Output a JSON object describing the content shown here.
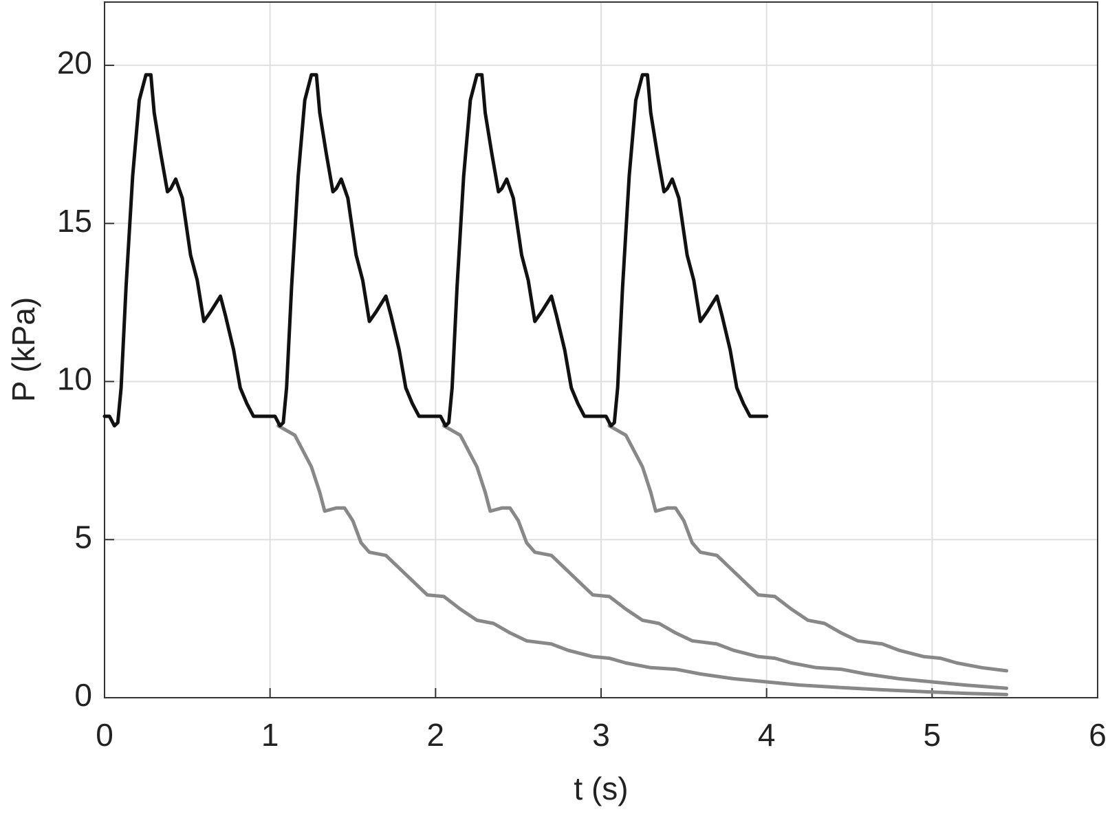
{
  "chart_data": {
    "type": "line",
    "xlabel": "t (s)",
    "ylabel": "P (kPa)",
    "xlim": [
      0,
      6
    ],
    "ylim": [
      0,
      22
    ],
    "xticks": [
      0,
      1,
      2,
      3,
      4,
      5,
      6
    ],
    "yticks": [
      0,
      5,
      10,
      15,
      20
    ],
    "grid": true,
    "series": [
      {
        "color": "#111111",
        "x": [
          0,
          0.03,
          0.06,
          0.08,
          0.1,
          0.13,
          0.17,
          0.21,
          0.25,
          0.28,
          0.3,
          0.34,
          0.38,
          0.4,
          0.43,
          0.47,
          0.52,
          0.56,
          0.6,
          0.64,
          0.7,
          0.73,
          0.78,
          0.82,
          0.86,
          0.9,
          0.96,
          1,
          1.03,
          1.06,
          1.08,
          1.1,
          1.13,
          1.17,
          1.21,
          1.25,
          1.28,
          1.3,
          1.34,
          1.38,
          1.4,
          1.43,
          1.47,
          1.52,
          1.56,
          1.6,
          1.64,
          1.7,
          1.73,
          1.78,
          1.82,
          1.86,
          1.9,
          1.96,
          2,
          2.03,
          2.06,
          2.08,
          2.1,
          2.13,
          2.17,
          2.21,
          2.25,
          2.28,
          2.3,
          2.34,
          2.38,
          2.4,
          2.43,
          2.47,
          2.52,
          2.56,
          2.6,
          2.64,
          2.7,
          2.73,
          2.78,
          2.82,
          2.86,
          2.9,
          2.96,
          3,
          3.03,
          3.06,
          3.08,
          3.1,
          3.13,
          3.17,
          3.21,
          3.25,
          3.28,
          3.3,
          3.34,
          3.38,
          3.4,
          3.43,
          3.47,
          3.52,
          3.56,
          3.6,
          3.64,
          3.7,
          3.73,
          3.78,
          3.82,
          3.86,
          3.9,
          3.96,
          4
        ],
        "values": [
          8.9,
          8.9,
          8.6,
          8.7,
          9.8,
          13,
          16.5,
          18.9,
          19.7,
          19.7,
          18.5,
          17.2,
          16.0,
          16.1,
          16.4,
          15.8,
          14,
          13.2,
          11.9,
          12.2,
          12.7,
          12.1,
          11,
          9.8,
          9.3,
          8.9,
          8.9,
          8.9,
          8.9,
          8.6,
          8.7,
          9.8,
          13,
          16.5,
          18.9,
          19.7,
          19.7,
          18.5,
          17.2,
          16.0,
          16.1,
          16.4,
          15.8,
          14,
          13.2,
          11.9,
          12.2,
          12.7,
          12.1,
          11,
          9.8,
          9.3,
          8.9,
          8.9,
          8.9,
          8.9,
          8.6,
          8.7,
          9.8,
          13,
          16.5,
          18.9,
          19.7,
          19.7,
          18.5,
          17.2,
          16.0,
          16.1,
          16.4,
          15.8,
          14,
          13.2,
          11.9,
          12.2,
          12.7,
          12.1,
          11,
          9.8,
          9.3,
          8.9,
          8.9,
          8.9,
          8.9,
          8.6,
          8.7,
          9.8,
          13,
          16.5,
          18.9,
          19.7,
          19.7,
          18.5,
          17.2,
          16.0,
          16.1,
          16.4,
          15.8,
          14,
          13.2,
          11.9,
          12.2,
          12.7,
          12.1,
          11,
          9.8,
          9.3,
          8.9,
          8.9,
          8.9
        ]
      },
      {
        "color": "#888888",
        "x": [
          1.05,
          1.15,
          1.25,
          1.3,
          1.33,
          1.4,
          1.45,
          1.5,
          1.55,
          1.6,
          1.7,
          1.8,
          1.9,
          1.95,
          2.05,
          2.15,
          2.25,
          2.35,
          2.45,
          2.55,
          2.7,
          2.8,
          2.95,
          3.05,
          3.15,
          3.3,
          3.45,
          3.6,
          3.8,
          4.0,
          4.2,
          4.45,
          4.7,
          5.0,
          5.2,
          5.45
        ],
        "values": [
          8.6,
          8.3,
          7.3,
          6.5,
          5.9,
          6.0,
          6.0,
          5.6,
          4.9,
          4.6,
          4.5,
          4.0,
          3.5,
          3.25,
          3.2,
          2.8,
          2.45,
          2.35,
          2.05,
          1.8,
          1.7,
          1.5,
          1.3,
          1.25,
          1.1,
          0.95,
          0.9,
          0.75,
          0.6,
          0.5,
          0.4,
          0.32,
          0.25,
          0.18,
          0.14,
          0.1
        ]
      },
      {
        "color": "#888888",
        "x": [
          2.05,
          2.15,
          2.25,
          2.3,
          2.33,
          2.4,
          2.45,
          2.5,
          2.55,
          2.6,
          2.7,
          2.8,
          2.9,
          2.95,
          3.05,
          3.15,
          3.25,
          3.35,
          3.45,
          3.55,
          3.7,
          3.8,
          3.95,
          4.05,
          4.15,
          4.3,
          4.45,
          4.6,
          4.8,
          5.0,
          5.2,
          5.45
        ],
        "values": [
          8.6,
          8.3,
          7.3,
          6.5,
          5.9,
          6.0,
          6.0,
          5.6,
          4.9,
          4.6,
          4.5,
          4.0,
          3.5,
          3.25,
          3.2,
          2.8,
          2.45,
          2.35,
          2.05,
          1.8,
          1.7,
          1.5,
          1.3,
          1.25,
          1.1,
          0.95,
          0.9,
          0.75,
          0.6,
          0.5,
          0.4,
          0.3
        ]
      },
      {
        "color": "#888888",
        "x": [
          3.05,
          3.15,
          3.25,
          3.3,
          3.33,
          3.4,
          3.45,
          3.5,
          3.55,
          3.6,
          3.7,
          3.8,
          3.9,
          3.95,
          4.05,
          4.15,
          4.25,
          4.35,
          4.45,
          4.55,
          4.7,
          4.8,
          4.95,
          5.05,
          5.15,
          5.3,
          5.45
        ],
        "values": [
          8.6,
          8.3,
          7.3,
          6.5,
          5.9,
          6.0,
          6.0,
          5.6,
          4.9,
          4.6,
          4.5,
          4.0,
          3.5,
          3.25,
          3.2,
          2.8,
          2.45,
          2.35,
          2.05,
          1.8,
          1.7,
          1.5,
          1.3,
          1.25,
          1.1,
          0.95,
          0.85
        ]
      }
    ]
  }
}
